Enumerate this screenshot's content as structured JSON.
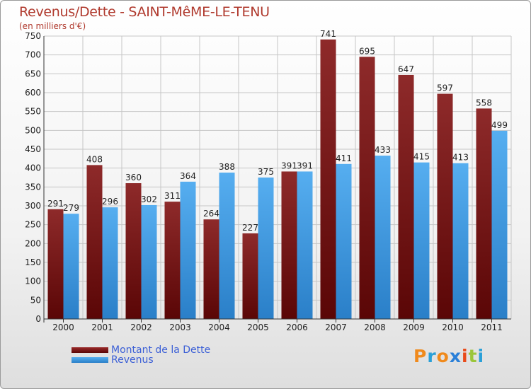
{
  "title": "Revenus/Dette - SAINT-MêME-LE-TENU",
  "subtitle": "(en milliers d'€)",
  "chart_data": {
    "type": "bar",
    "categories": [
      "2000",
      "2001",
      "2002",
      "2003",
      "2004",
      "2005",
      "2006",
      "2007",
      "2008",
      "2009",
      "2010",
      "2011"
    ],
    "series": [
      {
        "name": "Montant de la Dette",
        "values": [
          291,
          408,
          360,
          311,
          264,
          227,
          391,
          741,
          695,
          647,
          597,
          558
        ],
        "color": "#7a1818"
      },
      {
        "name": "Revenus",
        "values": [
          279,
          296,
          302,
          364,
          388,
          375,
          391,
          411,
          433,
          415,
          413,
          499
        ],
        "color": "#3d9be3"
      }
    ],
    "ylim": [
      0,
      750
    ],
    "yticks": [
      0,
      50,
      100,
      150,
      200,
      250,
      300,
      350,
      400,
      450,
      500,
      550,
      600,
      650,
      700,
      750
    ],
    "grid": true,
    "legend_position": "bottom-left"
  },
  "legend": [
    {
      "label": "Montant de la Dette",
      "color": "#7a1818"
    },
    {
      "label": "Revenus",
      "color": "#3d9be3"
    }
  ],
  "logo": {
    "letters": [
      "P",
      "r",
      "o",
      "x",
      "i",
      "t",
      "i"
    ],
    "colors": [
      "#f08a1c",
      "#2aa0d8",
      "#f08a1c",
      "#2a7fd8",
      "#e94b1b",
      "#9bc63b",
      "#2aa0d8"
    ]
  }
}
